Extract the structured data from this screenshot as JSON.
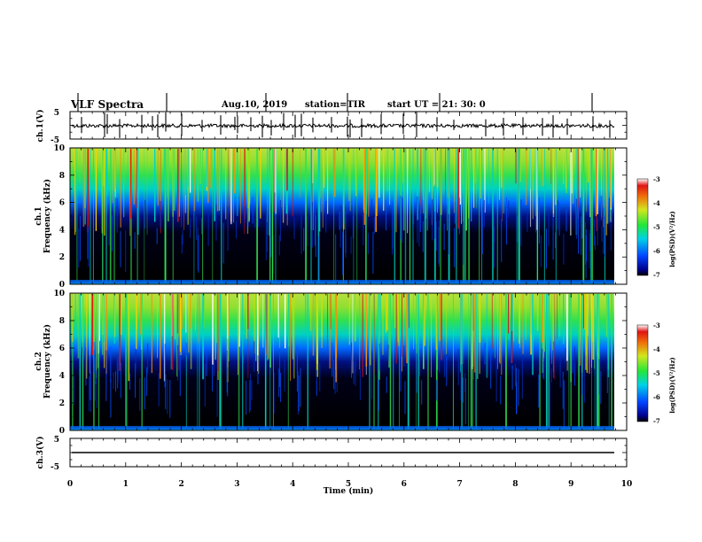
{
  "header": {
    "title": "VLF Spectra",
    "date": "Aug.10, 2019",
    "station": "station=TIR",
    "start": "start  UT =  21: 30: 0"
  },
  "chart_data": [
    {
      "type": "line",
      "ylabel": "ch.1(V)",
      "yticks": [
        "5",
        "-5"
      ],
      "ylim": [
        -5,
        5
      ],
      "xlim": [
        0,
        10
      ]
    },
    {
      "type": "heatmap",
      "ylabel_line1": "ch.1",
      "ylabel_line2": "Frequency (kHz)",
      "ylim": [
        0,
        10
      ],
      "yticks": [
        "0",
        "2",
        "4",
        "6",
        "8",
        "10"
      ],
      "xlim": [
        0,
        10
      ],
      "colorbar": {
        "label": "log(PSD)(V²/Hz)",
        "ticks": [
          "-3",
          "-4",
          "-5",
          "-6",
          "-7"
        ],
        "range": [
          -7,
          -3
        ]
      }
    },
    {
      "type": "heatmap",
      "ylabel_line1": "ch.2",
      "ylabel_line2": "Frequency (kHz)",
      "ylim": [
        0,
        10
      ],
      "yticks": [
        "0",
        "2",
        "4",
        "6",
        "8",
        "10"
      ],
      "xlim": [
        0,
        10
      ],
      "colorbar": {
        "label": "log(PSD)(V²/Hz)",
        "ticks": [
          "-3",
          "-4",
          "-5",
          "-6",
          "-7"
        ],
        "range": [
          -7,
          -3
        ]
      }
    },
    {
      "type": "line",
      "ylabel": "ch.3(V)",
      "yticks": [
        "5",
        "-5"
      ],
      "ylim": [
        -5,
        5
      ],
      "xlim": [
        0,
        10
      ],
      "xlabel": "Time (min)",
      "xticks": [
        "0",
        "1",
        "2",
        "3",
        "4",
        "5",
        "6",
        "7",
        "8",
        "9",
        "10"
      ]
    }
  ]
}
